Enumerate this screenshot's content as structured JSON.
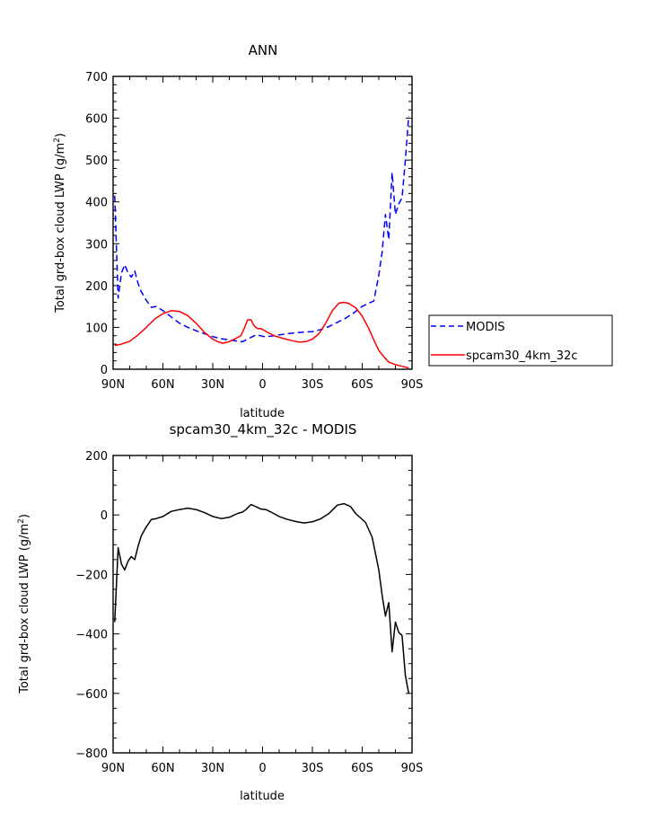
{
  "chart_data": [
    {
      "type": "line",
      "title": "ANN",
      "xlabel": "latitude",
      "ylabel": "Total grd-box cloud LWP (g/m²)",
      "ylabel_main": "Total grd-box cloud LWP (g/m",
      "ylabel_sup": "2",
      "ylabel_end": ")",
      "xlim": [
        90,
        -90
      ],
      "ylim": [
        0,
        700
      ],
      "xticks": [
        {
          "v": 90,
          "label": "90N"
        },
        {
          "v": 60,
          "label": "60N"
        },
        {
          "v": 30,
          "label": "30N"
        },
        {
          "v": 0,
          "label": "0"
        },
        {
          "v": -30,
          "label": "30S"
        },
        {
          "v": -60,
          "label": "60S"
        },
        {
          "v": -90,
          "label": "90S"
        }
      ],
      "yticks": [
        0,
        100,
        200,
        300,
        400,
        500,
        600,
        700
      ],
      "legend_placement": "right",
      "series": [
        {
          "name": "MODIS",
          "color": "#0000ff",
          "dash": true,
          "points": [
            [
              89,
              415
            ],
            [
              87,
              170
            ],
            [
              85,
              230
            ],
            [
              83,
              250
            ],
            [
              81,
              230
            ],
            [
              79,
              220
            ],
            [
              77,
              235
            ],
            [
              75,
              205
            ],
            [
              73,
              185
            ],
            [
              70,
              165
            ],
            [
              67,
              148
            ],
            [
              64,
              150
            ],
            [
              60,
              140
            ],
            [
              55,
              125
            ],
            [
              50,
              110
            ],
            [
              45,
              100
            ],
            [
              40,
              92
            ],
            [
              35,
              85
            ],
            [
              30,
              78
            ],
            [
              25,
              73
            ],
            [
              20,
              70
            ],
            [
              15,
              67
            ],
            [
              12,
              66
            ],
            [
              10,
              70
            ],
            [
              6,
              78
            ],
            [
              4,
              82
            ],
            [
              1,
              80
            ],
            [
              -1,
              78
            ],
            [
              -5,
              79
            ],
            [
              -10,
              82
            ],
            [
              -15,
              85
            ],
            [
              -20,
              87
            ],
            [
              -25,
              89
            ],
            [
              -30,
              90
            ],
            [
              -35,
              95
            ],
            [
              -40,
              102
            ],
            [
              -45,
              112
            ],
            [
              -50,
              122
            ],
            [
              -55,
              135
            ],
            [
              -60,
              150
            ],
            [
              -64,
              158
            ],
            [
              -67,
              163
            ],
            [
              -70,
              225
            ],
            [
              -72,
              280
            ],
            [
              -74,
              370
            ],
            [
              -76,
              310
            ],
            [
              -78,
              470
            ],
            [
              -80,
              370
            ],
            [
              -82,
              395
            ],
            [
              -84,
              410
            ],
            [
              -86,
              500
            ],
            [
              -88,
              605
            ]
          ]
        },
        {
          "name": "spcam30_4km_32c",
          "color": "#ff0000",
          "dash": false,
          "points": [
            [
              89,
              57
            ],
            [
              85,
              60
            ],
            [
              80,
              67
            ],
            [
              75,
              82
            ],
            [
              70,
              100
            ],
            [
              65,
              120
            ],
            [
              60,
              133
            ],
            [
              55,
              140
            ],
            [
              50,
              138
            ],
            [
              45,
              128
            ],
            [
              40,
              110
            ],
            [
              35,
              88
            ],
            [
              30,
              72
            ],
            [
              27,
              66
            ],
            [
              24,
              62
            ],
            [
              20,
              66
            ],
            [
              16,
              74
            ],
            [
              13,
              80
            ],
            [
              11,
              98
            ],
            [
              9,
              118
            ],
            [
              7,
              118
            ],
            [
              5,
              103
            ],
            [
              3,
              97
            ],
            [
              1,
              97
            ],
            [
              -1,
              93
            ],
            [
              -3,
              88
            ],
            [
              -7,
              80
            ],
            [
              -12,
              74
            ],
            [
              -18,
              68
            ],
            [
              -22,
              65
            ],
            [
              -26,
              66
            ],
            [
              -30,
              72
            ],
            [
              -34,
              85
            ],
            [
              -38,
              110
            ],
            [
              -42,
              140
            ],
            [
              -46,
              158
            ],
            [
              -49,
              160
            ],
            [
              -52,
              157
            ],
            [
              -56,
              147
            ],
            [
              -60,
              127
            ],
            [
              -64,
              97
            ],
            [
              -67,
              70
            ],
            [
              -70,
              45
            ],
            [
              -73,
              30
            ],
            [
              -76,
              17
            ],
            [
              -80,
              11
            ],
            [
              -84,
              7
            ],
            [
              -88,
              3
            ]
          ]
        }
      ]
    },
    {
      "type": "line",
      "title": "spcam30_4km_32c - MODIS",
      "xlabel": "latitude",
      "ylabel": "Total grd-box cloud LWP (g/m²)",
      "ylabel_main": "Total grd-box cloud LWP (g/m",
      "ylabel_sup": "2",
      "ylabel_end": ")",
      "xlim": [
        90,
        -90
      ],
      "ylim": [
        -800,
        200
      ],
      "xticks": [
        {
          "v": 90,
          "label": "90N"
        },
        {
          "v": 60,
          "label": "60N"
        },
        {
          "v": 30,
          "label": "30N"
        },
        {
          "v": 0,
          "label": "0"
        },
        {
          "v": -30,
          "label": "30S"
        },
        {
          "v": -60,
          "label": "60S"
        },
        {
          "v": -90,
          "label": "90S"
        }
      ],
      "yticks": [
        -800,
        -600,
        -400,
        -200,
        0,
        200
      ],
      "series": [
        {
          "color": "#000000",
          "dash": false,
          "points": [
            [
              89,
              -360
            ],
            [
              87,
              -110
            ],
            [
              85,
              -165
            ],
            [
              83,
              -185
            ],
            [
              81,
              -155
            ],
            [
              79,
              -140
            ],
            [
              77,
              -150
            ],
            [
              75,
              -105
            ],
            [
              73,
              -70
            ],
            [
              70,
              -40
            ],
            [
              67,
              -15
            ],
            [
              64,
              -12
            ],
            [
              60,
              -5
            ],
            [
              55,
              12
            ],
            [
              50,
              18
            ],
            [
              45,
              23
            ],
            [
              40,
              18
            ],
            [
              35,
              8
            ],
            [
              30,
              -5
            ],
            [
              25,
              -12
            ],
            [
              20,
              -8
            ],
            [
              15,
              5
            ],
            [
              12,
              10
            ],
            [
              10,
              18
            ],
            [
              7,
              35
            ],
            [
              4,
              28
            ],
            [
              1,
              20
            ],
            [
              -2,
              18
            ],
            [
              -5,
              10
            ],
            [
              -10,
              -5
            ],
            [
              -15,
              -15
            ],
            [
              -20,
              -22
            ],
            [
              -25,
              -27
            ],
            [
              -30,
              -23
            ],
            [
              -35,
              -13
            ],
            [
              -40,
              5
            ],
            [
              -45,
              33
            ],
            [
              -49,
              38
            ],
            [
              -53,
              28
            ],
            [
              -56,
              5
            ],
            [
              -59,
              -10
            ],
            [
              -62,
              -25
            ],
            [
              -66,
              -75
            ],
            [
              -70,
              -185
            ],
            [
              -72,
              -270
            ],
            [
              -74,
              -340
            ],
            [
              -76,
              -295
            ],
            [
              -78,
              -460
            ],
            [
              -80,
              -360
            ],
            [
              -82,
              -395
            ],
            [
              -84,
              -405
            ],
            [
              -86,
              -540
            ],
            [
              -88,
              -600
            ]
          ]
        }
      ]
    }
  ]
}
